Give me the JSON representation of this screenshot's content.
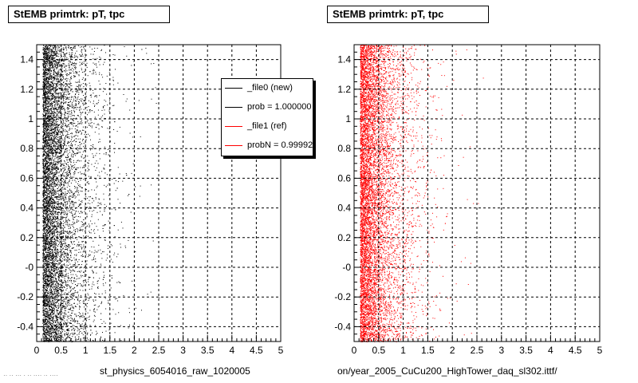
{
  "panels": [
    {
      "title": "StEMB primtrk: pT, tpc",
      "xlabel": "st_physics_6054016_raw_1020005",
      "marker_color": "#000000"
    },
    {
      "title": "StEMB primtrk: pT, tpc",
      "xlabel": "on/year_2005_CuCu200_HighTower_daq_sl302.ittf/",
      "marker_color": "#ff0000"
    }
  ],
  "legend": {
    "entries": [
      {
        "label": "_file0 (new)",
        "color": "#000000"
      },
      {
        "label": "prob = 1.000000",
        "color": "#000000"
      },
      {
        "label": "_file1 (ref)",
        "color": "#ff0000"
      },
      {
        "label": "probN = 0.999920",
        "color": "#ff0000"
      }
    ]
  },
  "footer_note": "·· ·· ··· · ·· ···· ·· ····",
  "chart_data": [
    {
      "type": "scatter",
      "title": "StEMB primtrk: pT, tpc",
      "xlabel": "st_physics_6054016_raw_1020005",
      "ylabel": "",
      "xlim": [
        0,
        5
      ],
      "ylim": [
        -0.5,
        1.5
      ],
      "x_ticks": [
        "0",
        "0.5",
        "1",
        "1.5",
        "2",
        "2.5",
        "3",
        "3.5",
        "4",
        "4.5",
        "5"
      ],
      "y_ticks": [
        "-0.4",
        "-0.2",
        "-0",
        "0.2",
        "0.4",
        "0.6",
        "0.8",
        "1",
        "1.2",
        "1.4"
      ],
      "y_tick_values": [
        -0.4,
        -0.2,
        0,
        0.2,
        0.4,
        0.6,
        0.8,
        1.0,
        1.2,
        1.4
      ],
      "grid": true,
      "legend": "top-right",
      "series": [
        {
          "name": "_file0 (new)",
          "color": "#000000",
          "density_peak_x": 0.3,
          "x_extent": [
            0.1,
            2.6
          ]
        }
      ]
    },
    {
      "type": "scatter",
      "title": "StEMB primtrk: pT, tpc",
      "xlabel": "on/year_2005_CuCu200_HighTower_daq_sl302.ittf/",
      "ylabel": "",
      "xlim": [
        0,
        5
      ],
      "ylim": [
        -0.5,
        1.5
      ],
      "x_ticks": [
        "0",
        "0.5",
        "1",
        "1.5",
        "2",
        "2.5",
        "3",
        "3.5",
        "4",
        "4.5",
        "5"
      ],
      "y_ticks": [
        "-0.4",
        "-0.2",
        "-0",
        "0.2",
        "0.4",
        "0.6",
        "0.8",
        "1",
        "1.2",
        "1.4"
      ],
      "y_tick_values": [
        -0.4,
        -0.2,
        0,
        0.2,
        0.4,
        0.6,
        0.8,
        1.0,
        1.2,
        1.4
      ],
      "grid": true,
      "series": [
        {
          "name": "_file1 (ref)",
          "color": "#ff0000",
          "density_peak_x": 0.3,
          "x_extent": [
            0.1,
            2.6
          ]
        }
      ]
    }
  ]
}
